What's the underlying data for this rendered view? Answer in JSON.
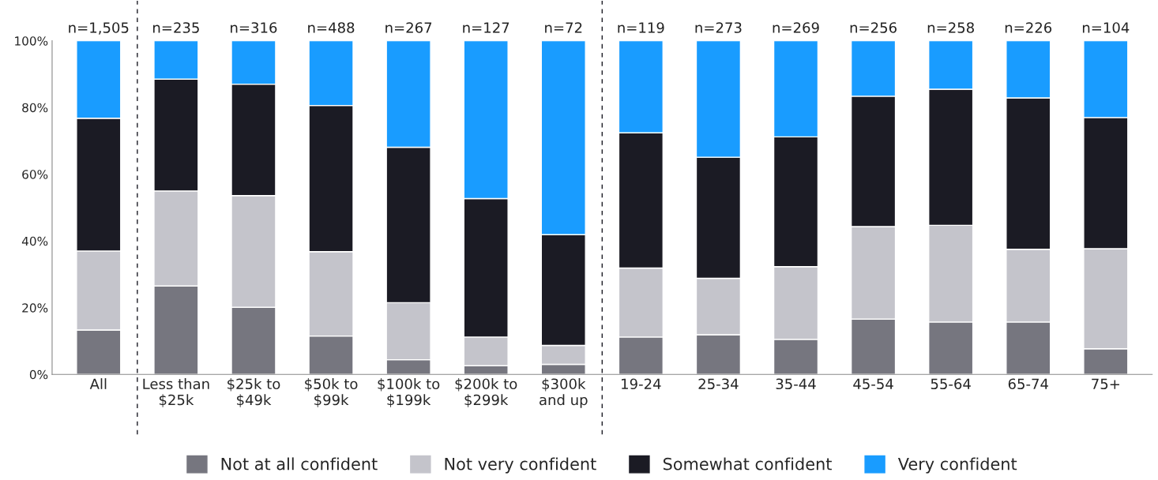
{
  "chart_data": {
    "type": "bar",
    "stacked": true,
    "categories": [
      "All",
      "Less than\n$25k",
      "$25k to\n$49k",
      "$50k to\n$99k",
      "$100k to\n$199k",
      "$200k to\n$299k",
      "$300k\nand up",
      "19-24",
      "25-34",
      "35-44",
      "45-54",
      "55-64",
      "65-74",
      "75+"
    ],
    "series": [
      {
        "name": "Not at all confident",
        "color": "#76767f",
        "values": [
          13.3,
          26.5,
          20.1,
          11.5,
          4.4,
          2.6,
          3.0,
          11.2,
          11.9,
          10.5,
          16.6,
          15.7,
          15.7,
          7.7
        ]
      },
      {
        "name": "Not very confident",
        "color": "#c4c4cb",
        "values": [
          23.7,
          28.5,
          33.5,
          25.3,
          17.1,
          8.6,
          5.7,
          20.7,
          16.9,
          21.8,
          27.7,
          29.0,
          21.8,
          30.0
        ]
      },
      {
        "name": "Somewhat confident",
        "color": "#1b1b24",
        "values": [
          39.8,
          33.5,
          33.4,
          43.8,
          46.6,
          41.5,
          33.2,
          40.5,
          36.3,
          38.9,
          39.1,
          40.8,
          45.4,
          39.3
        ]
      },
      {
        "name": "Very confident",
        "color": "#199cff",
        "values": [
          23.2,
          11.5,
          13.0,
          19.4,
          31.9,
          47.3,
          58.1,
          27.6,
          34.9,
          28.8,
          16.6,
          14.5,
          17.1,
          23.0
        ]
      }
    ],
    "annotations": [
      "n=1,505",
      "n=235",
      "n=316",
      "n=488",
      "n=267",
      "n=127",
      "n=72",
      "n=119",
      "n=273",
      "n=269",
      "n=256",
      "n=258",
      "n=226",
      "n=104"
    ],
    "ylim": [
      0,
      100
    ],
    "yticks": [
      {
        "value": 0,
        "label": "0%"
      },
      {
        "value": 20,
        "label": "20%"
      },
      {
        "value": 40,
        "label": "40%"
      },
      {
        "value": 60,
        "label": "60%"
      },
      {
        "value": 80,
        "label": "80%"
      },
      {
        "value": 100,
        "label": "100%"
      }
    ],
    "grid": false,
    "legend": "bottom"
  }
}
